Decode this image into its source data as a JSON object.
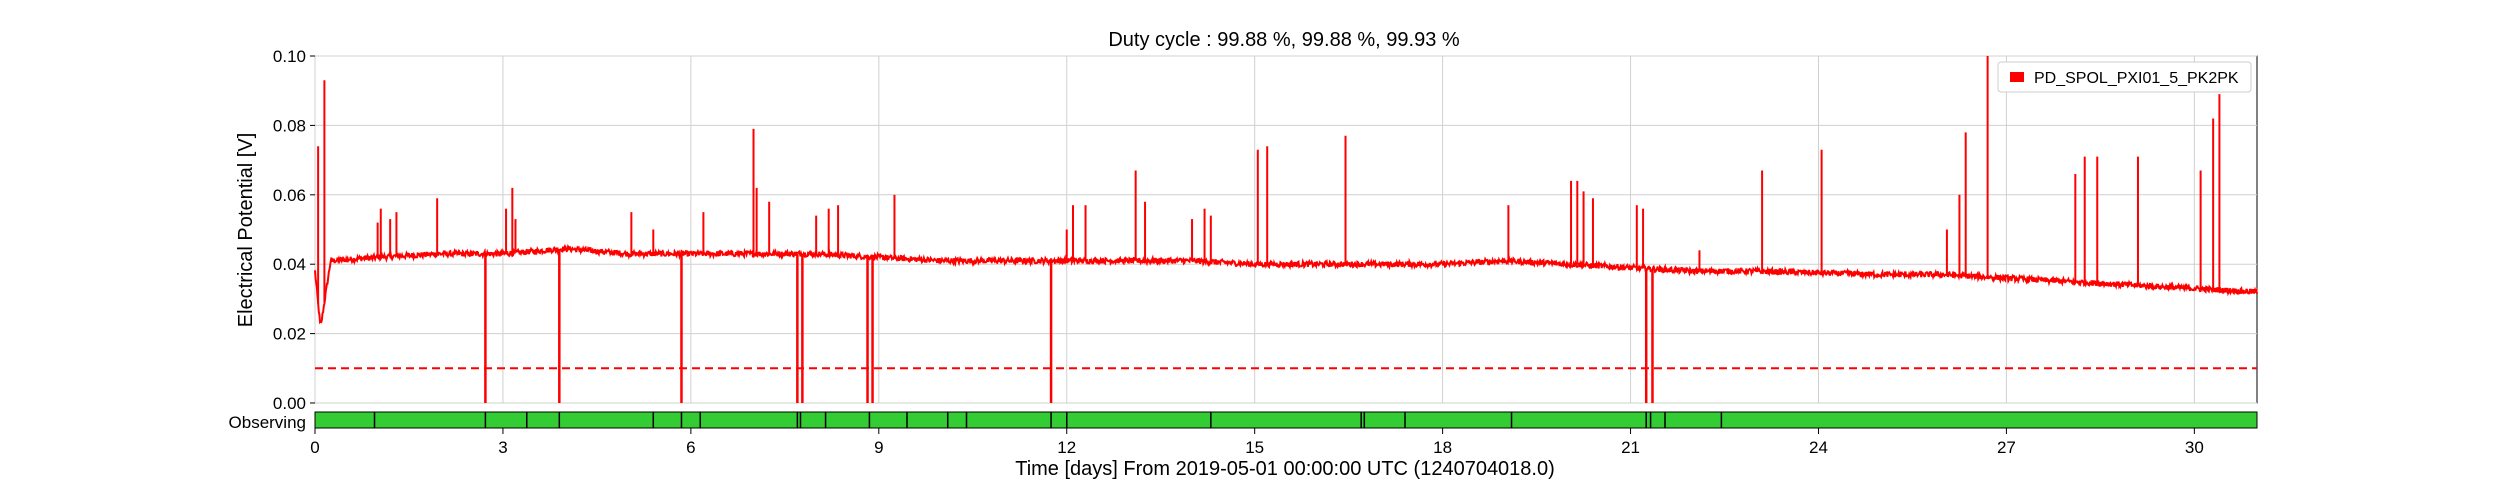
{
  "chart_data": {
    "type": "line",
    "title": "Duty cycle : 99.88 %, 99.88 %, 99.93 %",
    "xlabel": "Time [days] From 2019-05-01 00:00:00 UTC (1240704018.0)",
    "ylabel": "Electrical Potential [V]",
    "xlim": [
      0,
      31
    ],
    "ylim": [
      0,
      0.1
    ],
    "x_ticks": [
      0,
      3,
      6,
      9,
      12,
      15,
      18,
      21,
      24,
      27,
      30
    ],
    "x_tick_labels": [
      "0",
      "3",
      "6",
      "9",
      "12",
      "15",
      "18",
      "21",
      "24",
      "27",
      "30"
    ],
    "y_ticks": [
      0,
      0.02,
      0.04,
      0.06,
      0.08,
      0.1
    ],
    "y_tick_labels": [
      "0.00",
      "0.02",
      "0.04",
      "0.06",
      "0.08",
      "0.10"
    ],
    "grid": true,
    "legend_position": "top-right",
    "series": [
      {
        "name": "PD_SPOL_PXI01_5_PK2PK",
        "color": "#ff0000",
        "style": "solid",
        "baseline": {
          "x": [
            0,
            0.08,
            0.1,
            0.25,
            1,
            2,
            3,
            4,
            5,
            6,
            7,
            8,
            9,
            10,
            11,
            12,
            13,
            14,
            15,
            16,
            17,
            18,
            19,
            20,
            21,
            22,
            23,
            24,
            25,
            26,
            27,
            28,
            29,
            30,
            31
          ],
          "y": [
            0.038,
            0.023,
            0.023,
            0.041,
            0.042,
            0.043,
            0.043,
            0.0445,
            0.043,
            0.043,
            0.043,
            0.043,
            0.042,
            0.041,
            0.041,
            0.041,
            0.041,
            0.041,
            0.04,
            0.04,
            0.04,
            0.04,
            0.041,
            0.04,
            0.039,
            0.038,
            0.038,
            0.0375,
            0.037,
            0.037,
            0.036,
            0.035,
            0.034,
            0.033,
            0.032
          ]
        },
        "spikes_up": [
          {
            "x": 0.05,
            "y": 0.074
          },
          {
            "x": 0.15,
            "y": 0.093
          },
          {
            "x": 1.0,
            "y": 0.052
          },
          {
            "x": 1.05,
            "y": 0.056
          },
          {
            "x": 1.2,
            "y": 0.053
          },
          {
            "x": 1.3,
            "y": 0.055
          },
          {
            "x": 1.95,
            "y": 0.059
          },
          {
            "x": 3.05,
            "y": 0.056
          },
          {
            "x": 3.15,
            "y": 0.062
          },
          {
            "x": 3.2,
            "y": 0.053
          },
          {
            "x": 5.05,
            "y": 0.055
          },
          {
            "x": 5.4,
            "y": 0.05
          },
          {
            "x": 6.2,
            "y": 0.055
          },
          {
            "x": 7.0,
            "y": 0.079
          },
          {
            "x": 7.05,
            "y": 0.062
          },
          {
            "x": 7.25,
            "y": 0.058
          },
          {
            "x": 8.0,
            "y": 0.054
          },
          {
            "x": 8.2,
            "y": 0.056
          },
          {
            "x": 8.35,
            "y": 0.057
          },
          {
            "x": 9.25,
            "y": 0.06
          },
          {
            "x": 12.0,
            "y": 0.05
          },
          {
            "x": 12.1,
            "y": 0.057
          },
          {
            "x": 12.3,
            "y": 0.057
          },
          {
            "x": 13.1,
            "y": 0.067
          },
          {
            "x": 13.25,
            "y": 0.058
          },
          {
            "x": 14.0,
            "y": 0.053
          },
          {
            "x": 14.2,
            "y": 0.056
          },
          {
            "x": 14.3,
            "y": 0.054
          },
          {
            "x": 15.05,
            "y": 0.073
          },
          {
            "x": 15.2,
            "y": 0.074
          },
          {
            "x": 16.45,
            "y": 0.077
          },
          {
            "x": 19.05,
            "y": 0.057
          },
          {
            "x": 20.05,
            "y": 0.064
          },
          {
            "x": 20.15,
            "y": 0.064
          },
          {
            "x": 20.25,
            "y": 0.061
          },
          {
            "x": 20.4,
            "y": 0.059
          },
          {
            "x": 21.1,
            "y": 0.057
          },
          {
            "x": 21.2,
            "y": 0.056
          },
          {
            "x": 22.1,
            "y": 0.044
          },
          {
            "x": 23.1,
            "y": 0.067
          },
          {
            "x": 24.05,
            "y": 0.073
          },
          {
            "x": 26.05,
            "y": 0.05
          },
          {
            "x": 26.25,
            "y": 0.06
          },
          {
            "x": 26.35,
            "y": 0.078
          },
          {
            "x": 26.7,
            "y": 0.1
          },
          {
            "x": 28.1,
            "y": 0.066
          },
          {
            "x": 28.25,
            "y": 0.071
          },
          {
            "x": 28.45,
            "y": 0.071
          },
          {
            "x": 29.1,
            "y": 0.071
          },
          {
            "x": 30.1,
            "y": 0.067
          },
          {
            "x": 30.3,
            "y": 0.082
          },
          {
            "x": 30.4,
            "y": 0.089
          }
        ],
        "spikes_down": [
          {
            "x": 2.72,
            "y": 0.0
          },
          {
            "x": 3.9,
            "y": 0.0
          },
          {
            "x": 5.85,
            "y": 0.0
          },
          {
            "x": 7.7,
            "y": 0.0
          },
          {
            "x": 7.78,
            "y": 0.0
          },
          {
            "x": 8.82,
            "y": 0.0
          },
          {
            "x": 8.9,
            "y": 0.0
          },
          {
            "x": 11.75,
            "y": 0.0
          },
          {
            "x": 21.25,
            "y": 0.0
          },
          {
            "x": 21.35,
            "y": 0.0
          }
        ]
      },
      {
        "color": "#ff0000",
        "style": "dashed",
        "x": [
          0,
          31
        ],
        "y": [
          0.01,
          0.01
        ]
      }
    ],
    "segment_bar": {
      "label": "Observing",
      "color": "#33cc33",
      "gap_color": "#000000",
      "gaps": [
        0.95,
        2.72,
        3.38,
        3.9,
        5.4,
        5.85,
        6.15,
        7.7,
        7.75,
        8.15,
        8.85,
        9.45,
        10.1,
        10.4,
        11.75,
        12.0,
        14.3,
        16.7,
        16.75,
        17.4,
        19.1,
        21.25,
        21.32,
        21.55,
        22.45
      ]
    }
  }
}
